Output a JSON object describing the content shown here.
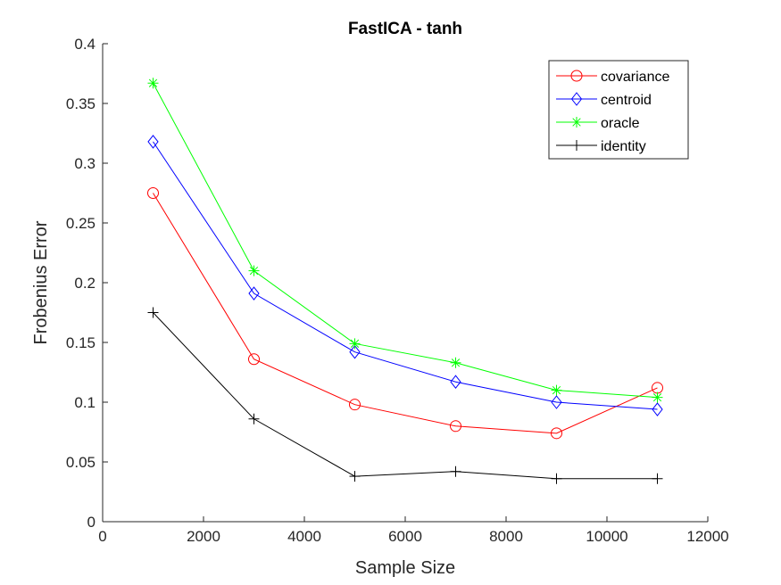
{
  "chart_data": {
    "type": "line",
    "title": "FastICA - tanh",
    "xlabel": "Sample Size",
    "ylabel": "Frobenius Error",
    "xlim": [
      0,
      12000
    ],
    "ylim": [
      0,
      0.4
    ],
    "xticks": [
      0,
      2000,
      4000,
      6000,
      8000,
      10000,
      12000
    ],
    "xtick_labels": [
      "0",
      "2000",
      "4000",
      "6000",
      "8000",
      "10000",
      "12000"
    ],
    "yticks": [
      0,
      0.05,
      0.1,
      0.15,
      0.2,
      0.25,
      0.3,
      0.35,
      0.4
    ],
    "ytick_labels": [
      "0",
      "0.05",
      "0.1",
      "0.15",
      "0.2",
      "0.25",
      "0.3",
      "0.35",
      "0.4"
    ],
    "grid": false,
    "legend_position": "top-right",
    "x": [
      1000,
      3000,
      5000,
      7000,
      9000,
      11000
    ],
    "series": [
      {
        "name": "covariance",
        "color": "#ff0000",
        "marker": "circle",
        "values": [
          0.275,
          0.136,
          0.098,
          0.08,
          0.074,
          0.112
        ]
      },
      {
        "name": "centroid",
        "color": "#0000ff",
        "marker": "diamond",
        "values": [
          0.318,
          0.191,
          0.142,
          0.117,
          0.1,
          0.094
        ]
      },
      {
        "name": "oracle",
        "color": "#00ff00",
        "marker": "asterisk",
        "values": [
          0.367,
          0.21,
          0.149,
          0.133,
          0.11,
          0.104
        ]
      },
      {
        "name": "identity",
        "color": "#000000",
        "marker": "plus",
        "values": [
          0.175,
          0.086,
          0.038,
          0.042,
          0.036,
          0.036
        ]
      }
    ]
  }
}
